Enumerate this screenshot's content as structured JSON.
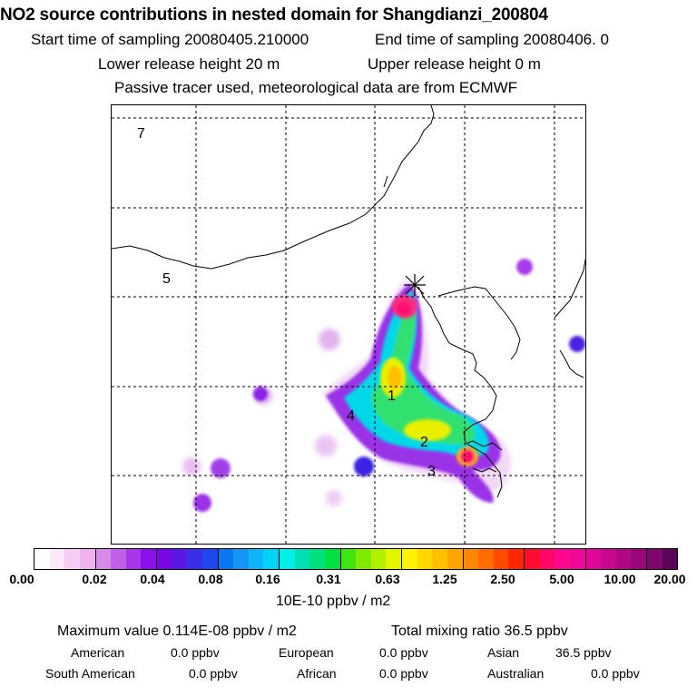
{
  "header": {
    "title": "NO2 source contributions in nested domain for Shangdianzi_200804",
    "line2_left": "Start time of sampling 20080405.210000",
    "line2_right": "End time of sampling 20080406.     0",
    "line3_left": "Lower release height   20 m",
    "line3_right": "Upper release height    0 m",
    "line4": "Passive tracer used, meteorological data are from ECMWF"
  },
  "map": {
    "region_labels": [
      "7",
      "5",
      "1",
      "2",
      "3",
      "4"
    ],
    "receptor_marker": "receptor-star-icon"
  },
  "legend": {
    "tick_labels": [
      "0.00",
      "0.02",
      "0.04",
      "0.08",
      "0.16",
      "0.31",
      "0.63",
      "1.25",
      "2.50",
      "5.00",
      "10.00",
      "20.00"
    ],
    "unit": "10E-10 ppbv / m2",
    "colors": [
      "#ffffff",
      "#fbe8fb",
      "#f5cdf5",
      "#eeb3ef",
      "#d78ae8",
      "#c060e6",
      "#a836ec",
      "#8c10ec",
      "#7a08e6",
      "#5a18e6",
      "#3c2cec",
      "#1e48ee",
      "#0a78f0",
      "#1496f6",
      "#10b4f8",
      "#00d4f8",
      "#00f0e8",
      "#00e0b4",
      "#00e07c",
      "#00e040",
      "#40e410",
      "#80ea00",
      "#b4ee00",
      "#e4f400",
      "#fff200",
      "#ffd800",
      "#ffc000",
      "#ffa400",
      "#ff8800",
      "#ff6c00",
      "#ff4a00",
      "#ff2600",
      "#ff0a30",
      "#ff0868",
      "#ff0890",
      "#f00898",
      "#e0089a",
      "#c8088e",
      "#b00884",
      "#980878",
      "#7c066a",
      "#5a0458"
    ]
  },
  "stats": {
    "max_label": "Maximum value  0.114E-08 ppbv / m2",
    "total_label": "Total mixing ratio       36.5 ppbv",
    "american": "American",
    "american_val": "0.0 ppbv",
    "european": "European",
    "european_val": "0.0 ppbv",
    "asian": "Asian",
    "asian_val": "36.5 ppbv",
    "south_american": "South American",
    "south_american_val": "0.0 ppbv",
    "african": "African",
    "african_val": "0.0 ppbv",
    "australian": "Australian",
    "australian_val": "0.0 ppbv"
  }
}
